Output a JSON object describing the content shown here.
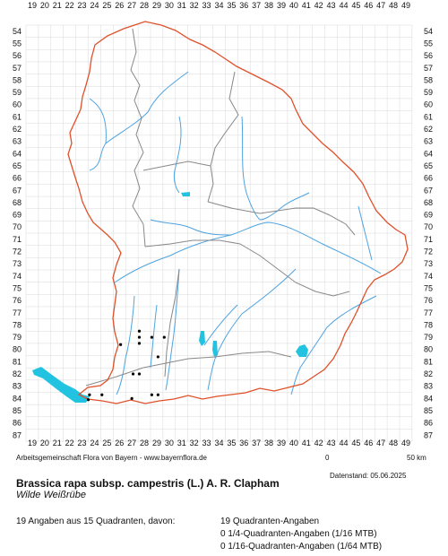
{
  "map": {
    "columns": [
      "19",
      "20",
      "21",
      "22",
      "23",
      "24",
      "25",
      "26",
      "27",
      "28",
      "29",
      "30",
      "31",
      "32",
      "33",
      "34",
      "35",
      "36",
      "37",
      "38",
      "39",
      "40",
      "41",
      "42",
      "43",
      "44",
      "45",
      "46",
      "47",
      "48",
      "49"
    ],
    "rows": [
      "54",
      "55",
      "56",
      "57",
      "58",
      "59",
      "60",
      "61",
      "62",
      "63",
      "64",
      "65",
      "66",
      "67",
      "68",
      "69",
      "70",
      "71",
      "72",
      "73",
      "74",
      "75",
      "76",
      "77",
      "78",
      "79",
      "80",
      "81",
      "82",
      "83",
      "84",
      "85",
      "86",
      "87"
    ],
    "colors": {
      "state_border": "#e0502a",
      "district_border": "#888888",
      "rivers": "#4da3e0",
      "lakes": "#22c3e0",
      "grid": "#d8d8d8",
      "records": "#000000"
    },
    "records": [
      {
        "col": 27.6,
        "row": 78.5
      },
      {
        "col": 27.6,
        "row": 79.0
      },
      {
        "col": 28.6,
        "row": 79.0
      },
      {
        "col": 29.6,
        "row": 79.0
      },
      {
        "col": 27.6,
        "row": 79.5
      },
      {
        "col": 26.1,
        "row": 79.6
      },
      {
        "col": 29.1,
        "row": 80.6
      },
      {
        "col": 27.1,
        "row": 82.0
      },
      {
        "col": 27.6,
        "row": 82.0
      },
      {
        "col": 23.6,
        "row": 83.7
      },
      {
        "col": 24.6,
        "row": 83.7
      },
      {
        "col": 28.6,
        "row": 83.7
      },
      {
        "col": 29.1,
        "row": 83.7
      },
      {
        "col": 23.5,
        "row": 84.1
      },
      {
        "col": 27.0,
        "row": 84.0
      }
    ]
  },
  "footer": {
    "credit": "Arbeitsgemeinschaft Flora von Bayern - www.bayernflora.de",
    "scale_zero": "0",
    "scale_end": "50 km",
    "datenstand": "Datenstand: 05.06.2025",
    "species": "Brassica rapa subsp. campestris (L.) A. R. Clapham",
    "common_name": "Wilde Weißrübe",
    "stat_total": "19 Angaben aus 15 Quadranten, davon:",
    "stat_quadrant": "19 Quadranten-Angaben",
    "stat_quarter": "0 1/4-Quadranten-Angaben (1/16 MTB)",
    "stat_sixteenth": "0 1/16-Quadranten-Angaben (1/64 MTB)"
  }
}
